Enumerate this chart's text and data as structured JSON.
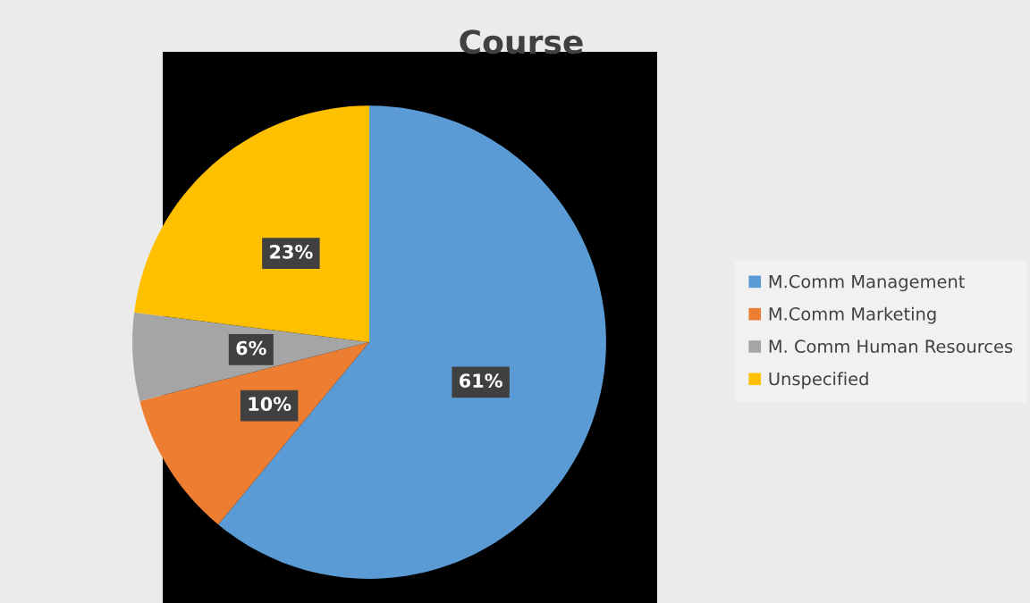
{
  "chart_data": {
    "type": "pie",
    "title": "Course",
    "categories": [
      "M.Comm Management",
      "M.Comm Marketing",
      "M. Comm Human Resources",
      "Unspecified"
    ],
    "values": [
      61,
      10,
      6,
      23
    ],
    "colors": [
      "#5b9bd5",
      "#ed7d31",
      "#a5a5a5",
      "#ffc000"
    ],
    "value_labels": [
      "61%",
      "10%",
      "6%",
      "23%"
    ],
    "legend": "right"
  }
}
